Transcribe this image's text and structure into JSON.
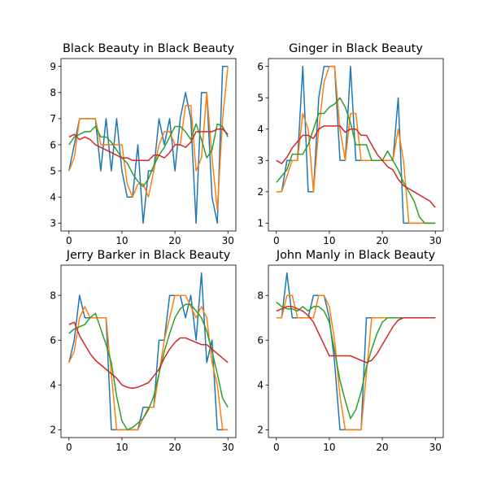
{
  "chart_data": [
    {
      "type": "line",
      "title": "Black Beauty in Black Beauty",
      "xlim": [
        -1.5,
        31.5
      ],
      "ylim": [
        2.7,
        9.3
      ],
      "xticks": [
        0,
        10,
        20,
        30
      ],
      "yticks": [
        3,
        4,
        5,
        6,
        7,
        8,
        9
      ],
      "x": [
        0,
        1,
        2,
        3,
        4,
        5,
        6,
        7,
        8,
        9,
        10,
        11,
        12,
        13,
        14,
        15,
        16,
        17,
        18,
        19,
        20,
        21,
        22,
        23,
        24,
        25,
        26,
        27,
        28,
        29,
        30
      ],
      "series": [
        {
          "color": "#1f77b4",
          "values": [
            5,
            6,
            7,
            7,
            7,
            7,
            5,
            7,
            5,
            7,
            5,
            4,
            4,
            6,
            3,
            5,
            5,
            7,
            6,
            7,
            5,
            7,
            8,
            7,
            3,
            8,
            8,
            4,
            3,
            9,
            9
          ]
        },
        {
          "color": "#ff7f0e",
          "values": [
            5,
            5.5,
            7,
            7,
            7,
            7,
            6,
            6,
            6,
            6,
            6,
            4.5,
            4,
            4.5,
            4.5,
            4,
            5,
            6,
            6.5,
            6.5,
            6,
            6,
            7.5,
            7.5,
            5,
            5.5,
            8,
            5.5,
            3.5,
            7,
            9
          ]
        },
        {
          "color": "#2ca02c",
          "values": [
            6,
            6.3,
            6.4,
            6.5,
            6.5,
            6.7,
            6.3,
            6.3,
            6.1,
            5.8,
            5.5,
            5.3,
            4.9,
            4.6,
            4.4,
            4.7,
            5.2,
            5.6,
            5.9,
            6.3,
            6.7,
            6.7,
            6.5,
            6.2,
            6.8,
            6.2,
            5.5,
            5.8,
            6.8,
            6.7,
            6.3
          ]
        },
        {
          "color": "#d62728",
          "values": [
            6.3,
            6.4,
            6.2,
            6.3,
            6.2,
            6,
            5.9,
            5.8,
            5.7,
            5.6,
            5.5,
            5.5,
            5.4,
            5.4,
            5.4,
            5.4,
            5.6,
            5.6,
            5.5,
            5.7,
            6,
            6,
            5.9,
            6.1,
            6.5,
            6.5,
            6.5,
            6.5,
            6.6,
            6.6,
            6.4
          ]
        }
      ]
    },
    {
      "type": "line",
      "title": "Ginger in Black Beauty",
      "xlim": [
        -1.5,
        31.5
      ],
      "ylim": [
        0.75,
        6.25
      ],
      "xticks": [
        0,
        10,
        20,
        30
      ],
      "yticks": [
        1,
        2,
        3,
        4,
        5,
        6
      ],
      "x": [
        0,
        1,
        2,
        3,
        4,
        5,
        6,
        7,
        8,
        9,
        10,
        11,
        12,
        13,
        14,
        15,
        16,
        17,
        18,
        19,
        20,
        21,
        22,
        23,
        24,
        25,
        26,
        27,
        28,
        29,
        30
      ],
      "series": [
        {
          "color": "#1f77b4",
          "values": [
            2,
            2,
            3,
            3,
            3,
            6,
            2,
            2,
            5,
            6,
            6,
            6,
            3,
            3,
            6,
            3,
            3,
            3,
            3,
            3,
            3,
            3,
            3,
            5,
            1,
            1,
            1,
            1,
            1,
            1,
            1
          ]
        },
        {
          "color": "#ff7f0e",
          "values": [
            2,
            2,
            2.5,
            3,
            3,
            4.5,
            4,
            2,
            4,
            5.5,
            6,
            6,
            4,
            3,
            4.5,
            4.5,
            3,
            3,
            3,
            3,
            3,
            3,
            3,
            4,
            3,
            1,
            1,
            1,
            1,
            1,
            1
          ]
        },
        {
          "color": "#2ca02c",
          "values": [
            2.3,
            2.5,
            2.7,
            3.2,
            3.2,
            3.2,
            3.5,
            4,
            4.5,
            4.5,
            4.7,
            4.8,
            5,
            4.7,
            4.2,
            3.5,
            3.5,
            3.5,
            3,
            3,
            3,
            3.3,
            3,
            2.7,
            2.3,
            2,
            1.7,
            1.2,
            1,
            1,
            1
          ]
        },
        {
          "color": "#d62728",
          "values": [
            3,
            2.9,
            3.1,
            3.4,
            3.6,
            3.8,
            3.8,
            3.7,
            4,
            4.1,
            4.1,
            4.1,
            4.1,
            3.9,
            4,
            4,
            3.8,
            3.8,
            3.5,
            3.2,
            3,
            2.8,
            2.7,
            2.4,
            2.2,
            2.1,
            2,
            1.9,
            1.8,
            1.7,
            1.5
          ]
        }
      ]
    },
    {
      "type": "line",
      "title": "Jerry Barker in Black Beauty",
      "xlim": [
        -1.5,
        31.5
      ],
      "ylim": [
        1.65,
        9.35
      ],
      "xticks": [
        0,
        10,
        20,
        30
      ],
      "yticks": [
        2,
        4,
        6,
        8
      ],
      "x": [
        0,
        1,
        2,
        3,
        4,
        5,
        6,
        7,
        8,
        9,
        10,
        11,
        12,
        13,
        14,
        15,
        16,
        17,
        18,
        19,
        20,
        21,
        22,
        23,
        24,
        25,
        26,
        27,
        28,
        29,
        30
      ],
      "series": [
        {
          "color": "#1f77b4",
          "values": [
            5,
            6,
            8,
            7,
            7,
            7,
            7,
            7,
            2,
            2,
            2,
            2,
            2,
            2,
            3,
            3,
            3,
            6,
            6,
            8,
            8,
            8,
            7,
            8,
            6,
            9,
            5,
            6,
            2,
            2,
            2
          ]
        },
        {
          "color": "#ff7f0e",
          "values": [
            5,
            5.5,
            7,
            7.5,
            7,
            7,
            7,
            7,
            4.5,
            2,
            2,
            2,
            2,
            2,
            2.5,
            3,
            3,
            4.5,
            6,
            7,
            8,
            8,
            8,
            7.5,
            7,
            7.5,
            7,
            5,
            4,
            2,
            2
          ]
        },
        {
          "color": "#2ca02c",
          "values": [
            6.3,
            6.5,
            6.6,
            6.7,
            7,
            7.2,
            6.5,
            5.8,
            5,
            3.5,
            2.4,
            2,
            2.1,
            2.3,
            2.5,
            2.9,
            3.5,
            4.5,
            5.5,
            6.3,
            7,
            7.4,
            7.6,
            7.6,
            7.3,
            7,
            6.4,
            5.5,
            4.5,
            3.4,
            3
          ]
        },
        {
          "color": "#d62728",
          "values": [
            6.7,
            6.8,
            6.2,
            5.8,
            5.4,
            5.1,
            4.9,
            4.7,
            4.5,
            4.3,
            4,
            3.9,
            3.85,
            3.9,
            4,
            4.1,
            4.4,
            4.7,
            5.2,
            5.6,
            5.9,
            6.1,
            6.1,
            6,
            5.9,
            5.8,
            5.8,
            5.6,
            5.4,
            5.2,
            5
          ]
        }
      ]
    },
    {
      "type": "line",
      "title": "John Manly in Black Beauty",
      "xlim": [
        -1.5,
        31.5
      ],
      "ylim": [
        1.65,
        9.35
      ],
      "xticks": [
        0,
        10,
        20,
        30
      ],
      "yticks": [
        2,
        4,
        6,
        8
      ],
      "x": [
        0,
        1,
        2,
        3,
        4,
        5,
        6,
        7,
        8,
        9,
        10,
        11,
        12,
        13,
        14,
        15,
        16,
        17,
        18,
        19,
        20,
        21,
        22,
        23,
        24,
        25,
        26,
        27,
        28,
        29,
        30
      ],
      "series": [
        {
          "color": "#1f77b4",
          "values": [
            7,
            7,
            9,
            7,
            7,
            7,
            7,
            8,
            8,
            8,
            7,
            5,
            2,
            2,
            2,
            2,
            2,
            7,
            7,
            7,
            7,
            7,
            7,
            7,
            7,
            7,
            7,
            7,
            7,
            7,
            7
          ]
        },
        {
          "color": "#ff7f0e",
          "values": [
            7,
            7,
            8,
            8,
            7,
            7,
            7,
            7,
            8,
            8,
            7.5,
            6,
            3.5,
            2,
            2,
            2,
            2,
            4.5,
            7,
            7,
            7,
            7,
            7,
            7,
            7,
            7,
            7,
            7,
            7,
            7,
            7
          ]
        },
        {
          "color": "#2ca02c",
          "values": [
            7.7,
            7.5,
            7.4,
            7.4,
            7.3,
            7.5,
            7.3,
            7.5,
            7.5,
            7.3,
            6.8,
            5.5,
            4.2,
            3.3,
            2.5,
            2.9,
            3.7,
            4.8,
            5.6,
            6.3,
            6.8,
            7,
            7,
            7,
            7,
            7,
            7,
            7,
            7,
            7,
            7
          ]
        },
        {
          "color": "#d62728",
          "values": [
            7.3,
            7.4,
            7.5,
            7.5,
            7.4,
            7.3,
            7.1,
            6.8,
            6.3,
            5.8,
            5.3,
            5.3,
            5.3,
            5.3,
            5.3,
            5.2,
            5.1,
            5,
            5.1,
            5.4,
            5.8,
            6.2,
            6.6,
            6.9,
            7,
            7,
            7,
            7,
            7,
            7,
            7
          ]
        }
      ]
    }
  ]
}
